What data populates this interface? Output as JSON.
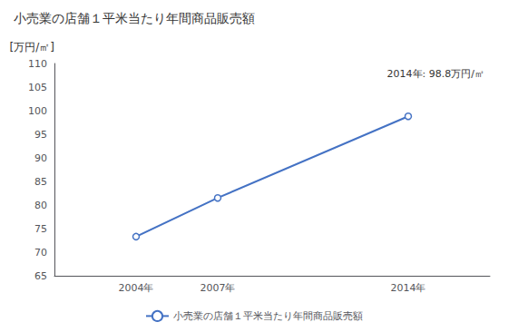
{
  "chart_data": {
    "type": "line",
    "title": "小売業の店舗１平米当たり年間商品販売額",
    "ylabel": "[万円/㎡]",
    "annotation": "2014年: 98.8万円/㎡",
    "x": [
      2004,
      2007,
      2014
    ],
    "xlim": [
      2001,
      2017
    ],
    "xticks": [
      {
        "value": 2004,
        "label": "2004年"
      },
      {
        "value": 2007,
        "label": "2007年"
      },
      {
        "value": 2014,
        "label": "2014年"
      }
    ],
    "series": [
      {
        "name": "小売業の店舗１平米当たり年間商品販売額",
        "color": "#4472C4",
        "marker": "circle",
        "values": [
          73.3,
          81.5,
          98.8
        ]
      }
    ],
    "ylim": [
      65,
      110
    ],
    "yticks": [
      65,
      70,
      75,
      80,
      85,
      90,
      95,
      100,
      105,
      110
    ],
    "grid": false,
    "legend": "bottom"
  }
}
